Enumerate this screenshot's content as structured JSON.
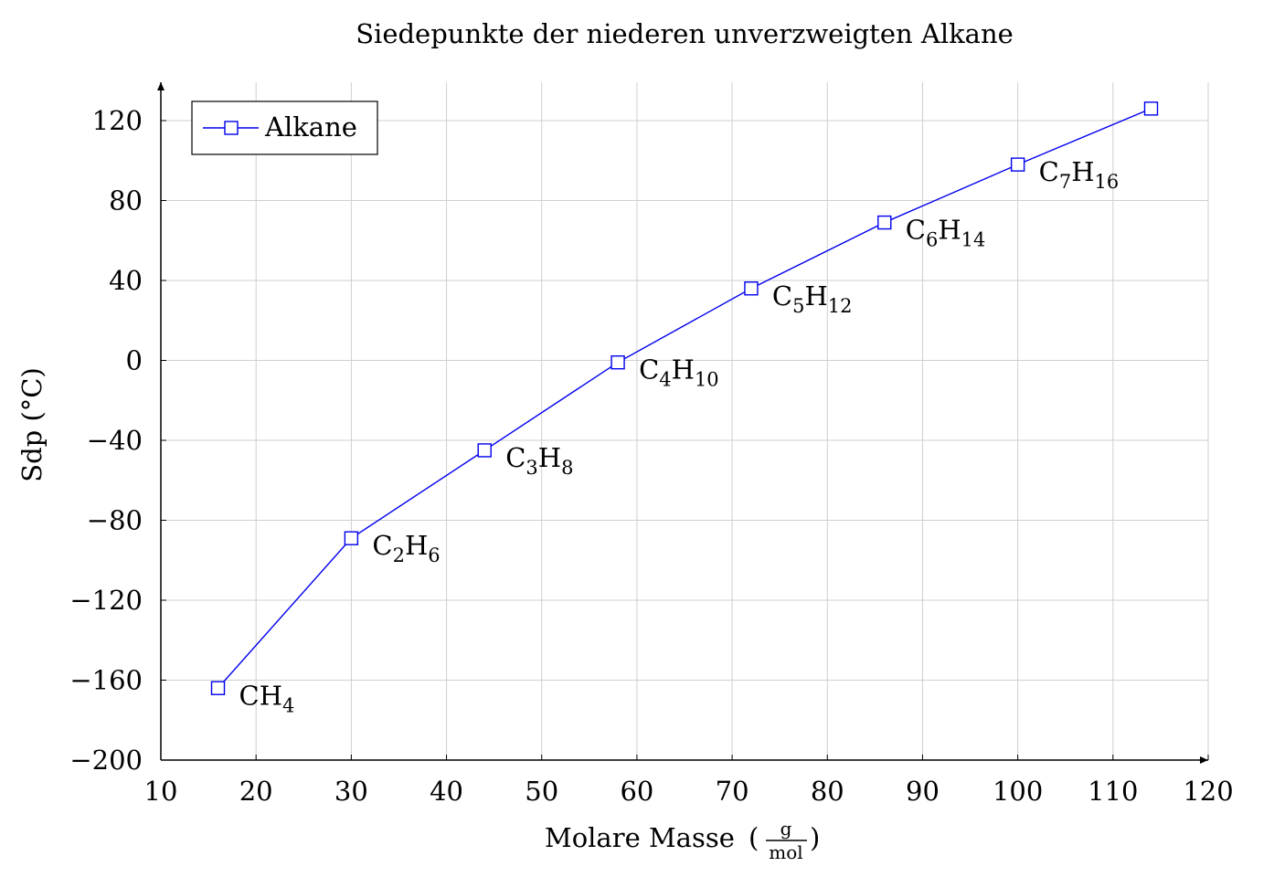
{
  "chart_data": {
    "type": "line",
    "title": "Siedepunkte der niederen unverzweigten Alkane",
    "xlabel": "Molare Masse",
    "xlabel_unit": {
      "numerator": "g",
      "denominator": "mol"
    },
    "ylabel": "Sdp (°C)",
    "xlim": [
      10,
      120
    ],
    "ylim": [
      -200,
      140
    ],
    "x_ticks": [
      10,
      20,
      30,
      40,
      50,
      60,
      70,
      80,
      90,
      100,
      110,
      120
    ],
    "y_ticks": [
      -200,
      -160,
      -120,
      -80,
      -40,
      0,
      40,
      80,
      120
    ],
    "x_tick_labels": [
      "10",
      "20",
      "30",
      "40",
      "50",
      "60",
      "70",
      "80",
      "90",
      "100",
      "110",
      "120"
    ],
    "y_tick_labels": [
      "−200",
      "−160",
      "−120",
      "−80",
      "−40",
      "0",
      "40",
      "80",
      "120"
    ],
    "grid": true,
    "legend_position": "top-left",
    "colors": {
      "series": "#0000ee",
      "grid": "#cfcfcf",
      "axis": "#000000"
    },
    "series": [
      {
        "name": "Alkane",
        "marker": "square",
        "x": [
          16,
          30,
          44,
          58,
          72,
          86,
          100,
          114
        ],
        "y": [
          -164,
          -89,
          -45,
          -1,
          36,
          69,
          98,
          126
        ],
        "point_labels": [
          {
            "main": "CH",
            "sub": "4",
            "main2": "",
            "sub2": ""
          },
          {
            "main": "C",
            "sub": "2",
            "main2": "H",
            "sub2": "6"
          },
          {
            "main": "C",
            "sub": "3",
            "main2": "H",
            "sub2": "8"
          },
          {
            "main": "C",
            "sub": "4",
            "main2": "H",
            "sub2": "10"
          },
          {
            "main": "C",
            "sub": "5",
            "main2": "H",
            "sub2": "12"
          },
          {
            "main": "C",
            "sub": "6",
            "main2": "H",
            "sub2": "14"
          },
          {
            "main": "C",
            "sub": "7",
            "main2": "H",
            "sub2": "16"
          },
          {
            "main": "",
            "sub": "",
            "main2": "",
            "sub2": ""
          }
        ]
      }
    ]
  }
}
